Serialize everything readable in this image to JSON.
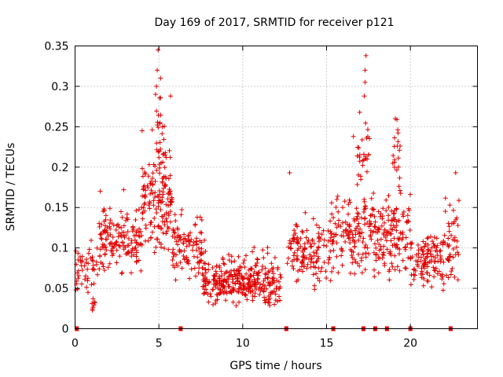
{
  "chart_data": {
    "type": "scatter",
    "title": "Day 169 of 2017, SRMTID for receiver p121",
    "xlabel": "GPS time / hours",
    "ylabel": "SRMTID / TECUs",
    "xlim": [
      0,
      24
    ],
    "ylim": [
      0,
      0.35
    ],
    "xticks": [
      0,
      5,
      10,
      15,
      20
    ],
    "xtick_labels": [
      "0",
      "5",
      "10",
      "15",
      "20"
    ],
    "yticks": [
      0,
      0.05,
      0.1,
      0.15,
      0.2,
      0.25,
      0.3,
      0.35
    ],
    "ytick_labels": [
      "0",
      "0.05",
      "0.1",
      "0.15",
      "0.2",
      "0.25",
      "0.3",
      "0.35"
    ],
    "grid": true,
    "marker": "+",
    "color": "#e00000",
    "zero_markers_x": [
      0.1,
      6.3,
      12.6,
      15.4,
      17.2,
      17.9,
      18.6,
      20.0,
      22.4
    ],
    "segments": [
      {
        "x0": 0.0,
        "x1": 1.6,
        "base": 0.075,
        "spread": 0.025,
        "n": 50
      },
      {
        "x0": 1.0,
        "x1": 1.2,
        "base": 0.028,
        "spread": 0.008,
        "n": 8
      },
      {
        "x0": 1.4,
        "x1": 4.0,
        "base": 0.11,
        "spread": 0.035,
        "n": 150
      },
      {
        "x0": 4.0,
        "x1": 5.8,
        "base": 0.16,
        "spread": 0.055,
        "n": 150
      },
      {
        "x0": 4.6,
        "x1": 5.4,
        "base": 0.25,
        "spread": 0.045,
        "n": 25
      },
      {
        "x0": 5.8,
        "x1": 7.8,
        "base": 0.1,
        "spread": 0.035,
        "n": 110
      },
      {
        "x0": 7.6,
        "x1": 12.3,
        "base": 0.055,
        "spread": 0.02,
        "n": 300
      },
      {
        "x0": 8.5,
        "x1": 12.0,
        "base": 0.085,
        "spread": 0.015,
        "n": 30
      },
      {
        "x0": 12.6,
        "x1": 15.2,
        "base": 0.095,
        "spread": 0.035,
        "n": 130
      },
      {
        "x0": 15.2,
        "x1": 17.8,
        "base": 0.12,
        "spread": 0.045,
        "n": 150
      },
      {
        "x0": 16.8,
        "x1": 17.6,
        "base": 0.22,
        "spread": 0.035,
        "n": 25
      },
      {
        "x0": 17.8,
        "x1": 20.0,
        "base": 0.115,
        "spread": 0.045,
        "n": 140
      },
      {
        "x0": 18.9,
        "x1": 19.4,
        "base": 0.21,
        "spread": 0.04,
        "n": 20
      },
      {
        "x0": 20.0,
        "x1": 22.0,
        "base": 0.085,
        "spread": 0.03,
        "n": 120
      },
      {
        "x0": 22.0,
        "x1": 22.9,
        "base": 0.11,
        "spread": 0.045,
        "n": 45
      }
    ],
    "peaks": [
      {
        "x": 4.95,
        "y": 0.345
      },
      {
        "x": 4.9,
        "y": 0.32
      },
      {
        "x": 4.85,
        "y": 0.3
      },
      {
        "x": 5.1,
        "y": 0.31
      },
      {
        "x": 5.7,
        "y": 0.288
      },
      {
        "x": 4.0,
        "y": 0.245
      },
      {
        "x": 17.35,
        "y": 0.338
      },
      {
        "x": 17.3,
        "y": 0.32
      },
      {
        "x": 17.3,
        "y": 0.305
      },
      {
        "x": 17.25,
        "y": 0.288
      },
      {
        "x": 16.6,
        "y": 0.238
      },
      {
        "x": 19.1,
        "y": 0.26
      },
      {
        "x": 2.9,
        "y": 0.172
      },
      {
        "x": 1.5,
        "y": 0.17
      },
      {
        "x": 12.8,
        "y": 0.193
      },
      {
        "x": 22.7,
        "y": 0.193
      }
    ]
  }
}
